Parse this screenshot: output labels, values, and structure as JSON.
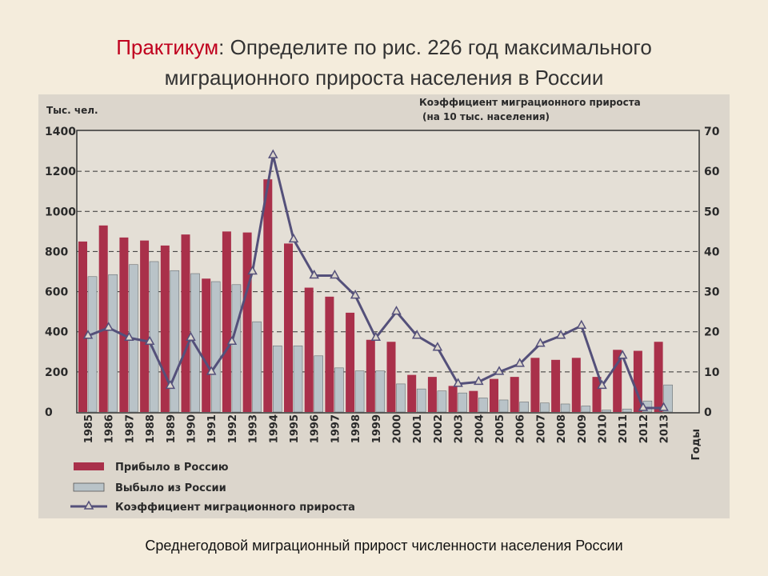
{
  "slide": {
    "title_accent": "Практикум",
    "title_rest_line1": ": Определите по рис. 226 год максимального",
    "title_line2": "миграционного прироста населения в России",
    "caption": "Среднегодовой миграционный прирост численности населения России"
  },
  "colors": {
    "arrived": "#a9304a",
    "left": "#b9c3c8",
    "coef_line": "#54507a"
  },
  "chart_data": {
    "type": "bar",
    "left_axis_label": "Тыс. чел.",
    "right_axis_label_line1": "Коэффициент миграционного прироста",
    "right_axis_label_line2": "(на 10 тыс. населения)",
    "x_axis_label": "Годы",
    "left_ylim": [
      0,
      1400
    ],
    "left_ticks": [
      0,
      200,
      400,
      600,
      800,
      1000,
      1200,
      1400
    ],
    "right_ylim": [
      0,
      70
    ],
    "right_ticks": [
      0,
      10,
      20,
      30,
      40,
      50,
      60,
      70
    ],
    "categories": [
      "1985",
      "1986",
      "1987",
      "1988",
      "1989",
      "1990",
      "1991",
      "1992",
      "1993",
      "1994",
      "1995",
      "1996",
      "1997",
      "1998",
      "1999",
      "2000",
      "2001",
      "2002",
      "2003",
      "2004",
      "2005",
      "2006",
      "2007",
      "2008",
      "2009",
      "2010",
      "2011",
      "2012",
      "2013"
    ],
    "series": [
      {
        "name": "Прибыло в Россию",
        "values": [
          850,
          930,
          870,
          855,
          830,
          885,
          665,
          900,
          895,
          1160,
          840,
          620,
          575,
          495,
          360,
          350,
          185,
          175,
          130,
          105,
          165,
          175,
          270,
          260,
          270,
          175,
          310,
          305,
          350
        ]
      },
      {
        "name": "Выбыло из России",
        "values": [
          675,
          685,
          735,
          750,
          705,
          690,
          650,
          635,
          450,
          330,
          330,
          280,
          220,
          205,
          205,
          140,
          115,
          105,
          95,
          70,
          60,
          50,
          45,
          40,
          30,
          10,
          15,
          55,
          135
        ]
      },
      {
        "name": "Коэффициент миграционного прироста",
        "axis": "right",
        "values": [
          19,
          21,
          18.5,
          17.5,
          6.5,
          18.5,
          10,
          17.5,
          35,
          64,
          43,
          34,
          34,
          29,
          18.5,
          25,
          19,
          16,
          7,
          7.5,
          10,
          12,
          17,
          19,
          21.5,
          6.5,
          14,
          1,
          1
        ]
      }
    ]
  }
}
